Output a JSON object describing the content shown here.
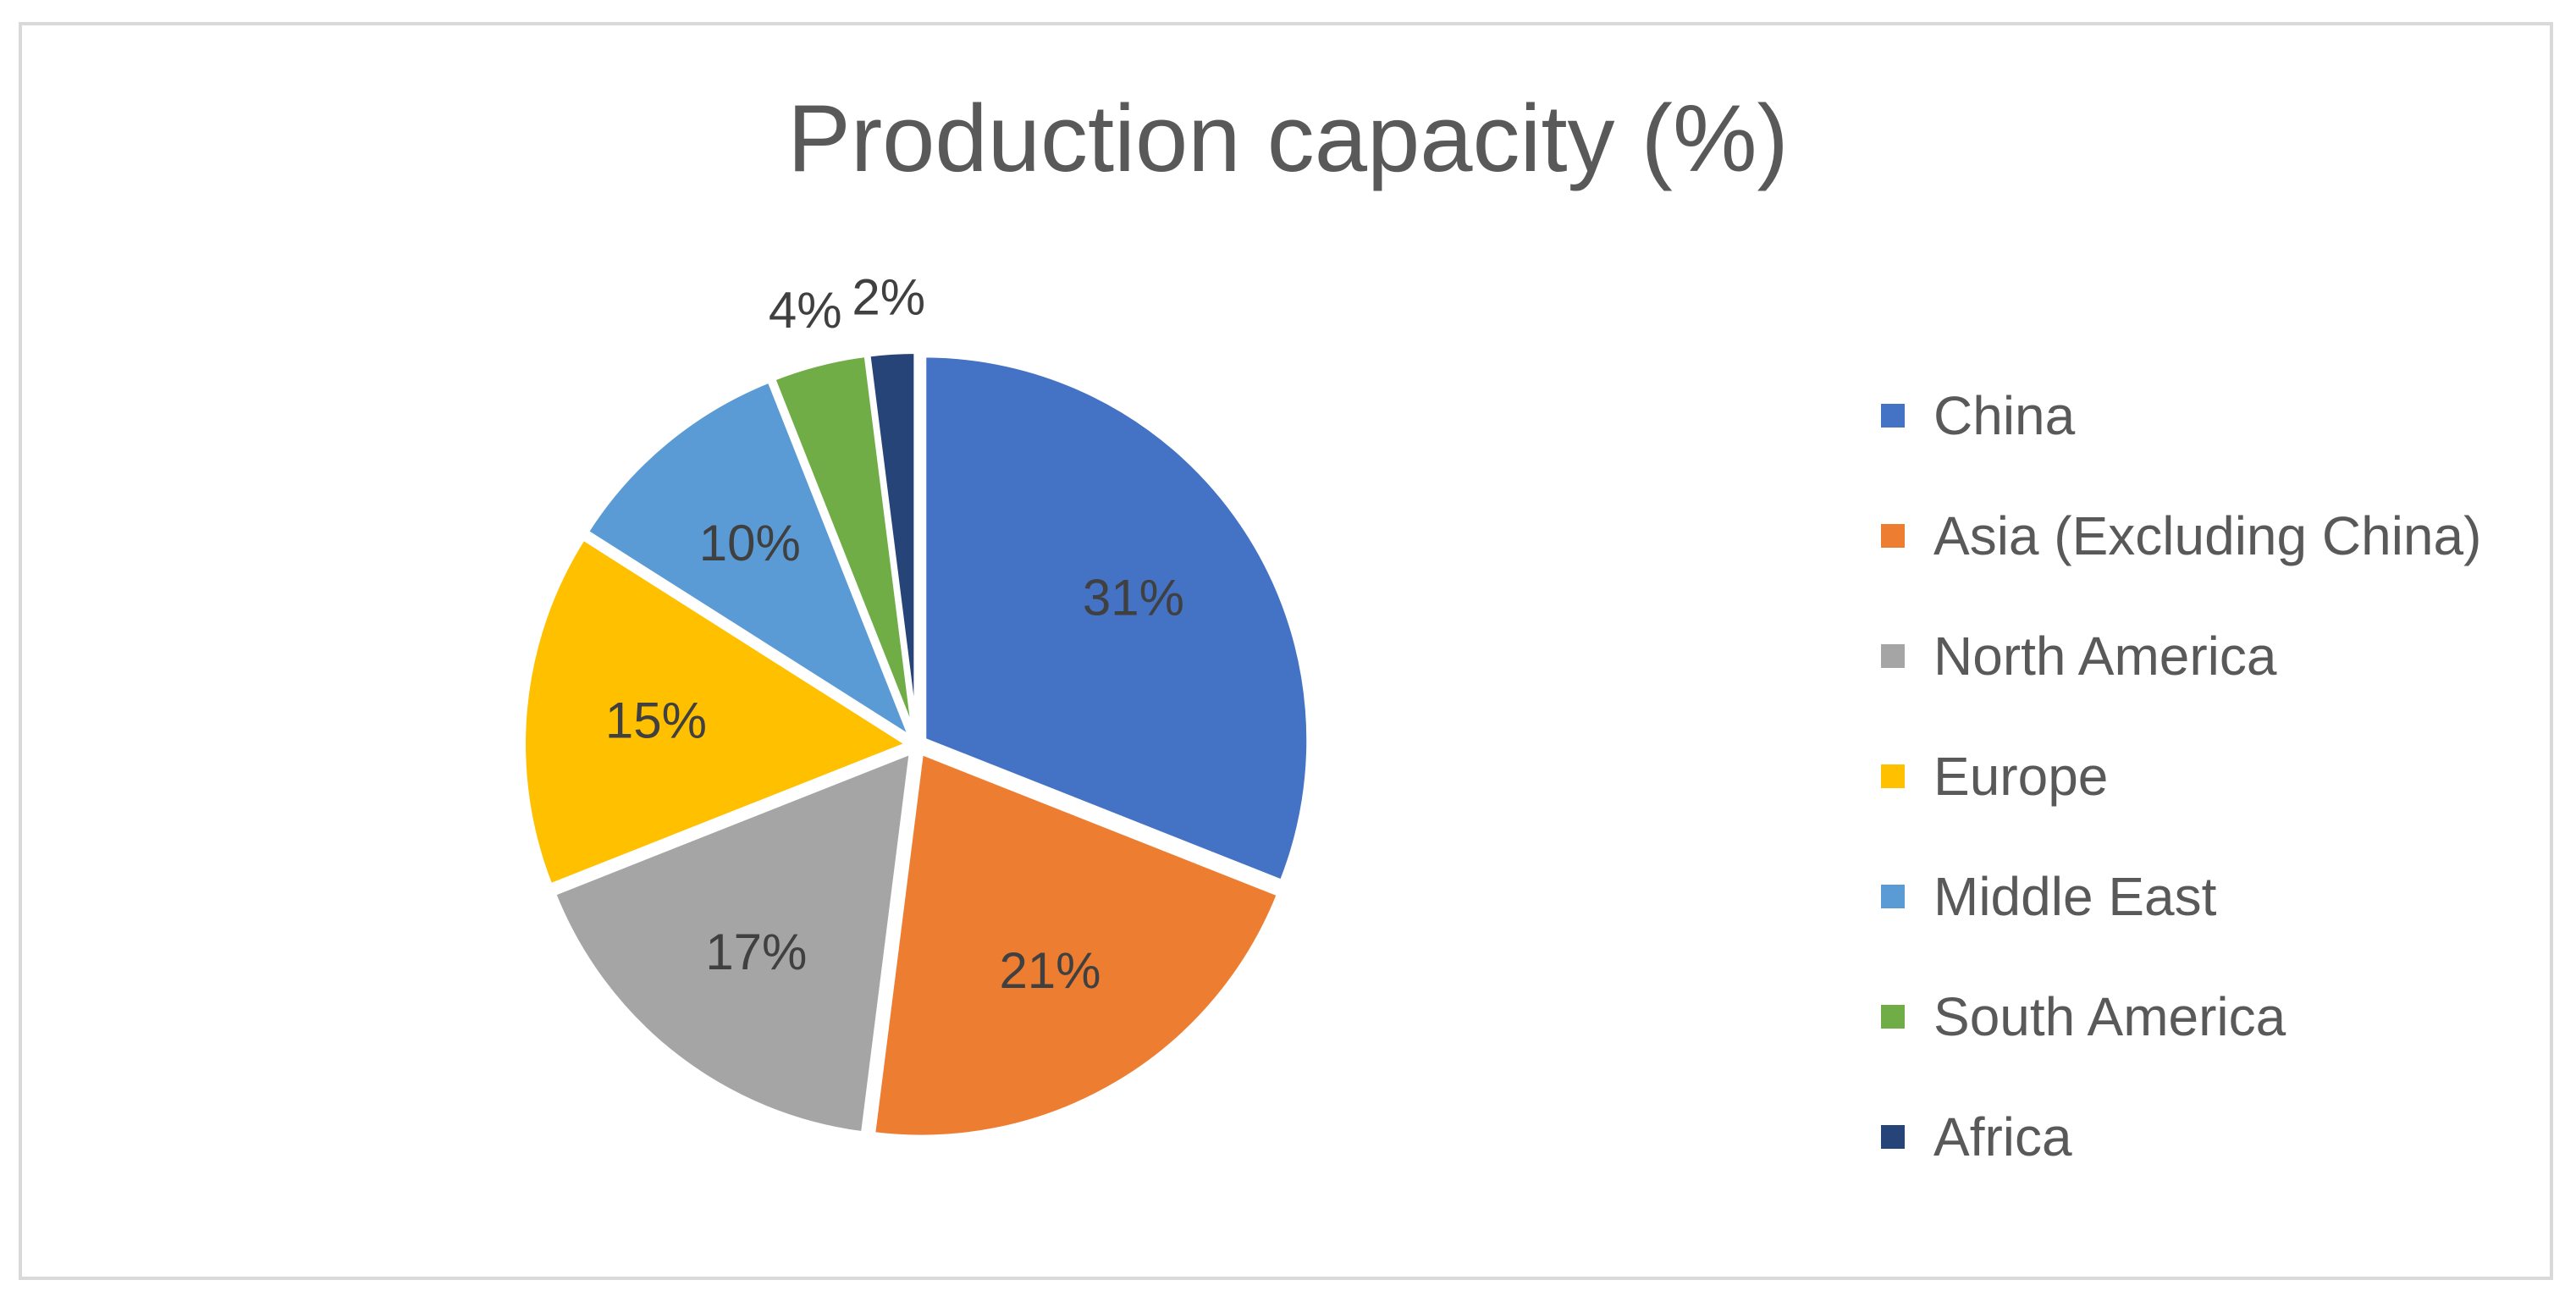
{
  "chart_data": {
    "type": "pie",
    "title": "Production capacity (%)",
    "categories": [
      "China",
      "Asia (Excluding China)",
      "North America",
      "Europe",
      "Middle East",
      "South America",
      "Africa"
    ],
    "values": [
      31,
      21,
      17,
      15,
      10,
      4,
      2
    ],
    "labels": [
      "31%",
      "21%",
      "17%",
      "15%",
      "10%",
      "4%",
      "2%"
    ],
    "colors": [
      "#4472C4",
      "#ED7D31",
      "#A5A5A5",
      "#FFC000",
      "#5B9BD5",
      "#70AD47",
      "#264478"
    ],
    "legend_position": "right",
    "start_angle_deg": 0,
    "direction": "clockwise"
  }
}
